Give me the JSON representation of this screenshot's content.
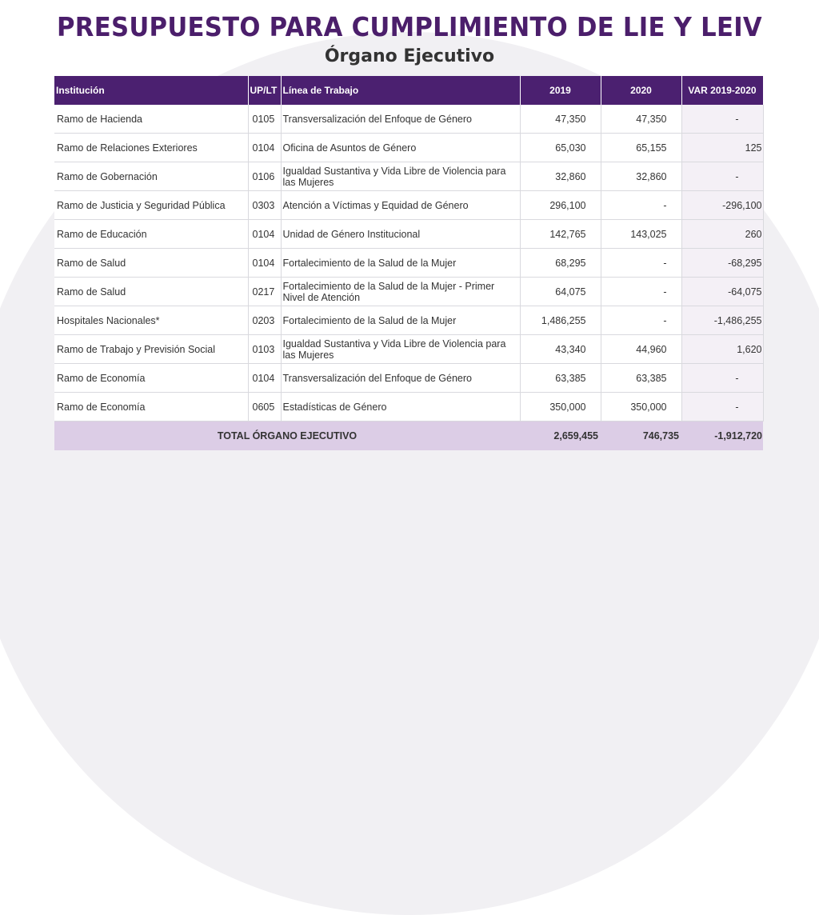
{
  "title": "PRESUPUESTO PARA CUMPLIMIENTO DE LIE Y LEIV",
  "subtitle": "Órgano Ejecutivo",
  "table": {
    "headers": {
      "institucion": "Institución",
      "uplt": "UP/LT",
      "linea": "Línea de Trabajo",
      "y2019": "2019",
      "y2020": "2020",
      "var": "VAR 2019-2020"
    },
    "rows": [
      {
        "institucion": "Ramo de Hacienda",
        "uplt": "0105",
        "linea": "Transversalización del Enfoque de Género",
        "y2019": "47,350",
        "y2020": "47,350",
        "var": "-"
      },
      {
        "institucion": "Ramo de Relaciones Exteriores",
        "uplt": "0104",
        "linea": "Oficina de Asuntos de Género",
        "y2019": "65,030",
        "y2020": "65,155",
        "var": "125"
      },
      {
        "institucion": "Ramo de Gobernación",
        "uplt": "0106",
        "linea": "Igualdad Sustantiva y Vida Libre de Violencia para las Mujeres",
        "y2019": "32,860",
        "y2020": "32,860",
        "var": "-"
      },
      {
        "institucion": "Ramo de Justicia y Seguridad Pública",
        "uplt": "0303",
        "linea": "Atención a Víctimas y Equidad de Género",
        "y2019": "296,100",
        "y2020": "-",
        "var": "-296,100"
      },
      {
        "institucion": "Ramo de Educación",
        "uplt": "0104",
        "linea": "Unidad de Género Institucional",
        "y2019": "142,765",
        "y2020": "143,025",
        "var": "260"
      },
      {
        "institucion": "Ramo de Salud",
        "uplt": "0104",
        "linea": "Fortalecimiento de la Salud de la Mujer",
        "y2019": "68,295",
        "y2020": "-",
        "var": "-68,295"
      },
      {
        "institucion": "Ramo de Salud",
        "uplt": "0217",
        "linea": "Fortalecimiento de la Salud de la Mujer - Primer Nivel de Atención",
        "y2019": "64,075",
        "y2020": "-",
        "var": "-64,075"
      },
      {
        "institucion": "Hospitales Nacionales*",
        "uplt": "0203",
        "linea": "Fortalecimiento de la Salud de la Mujer",
        "y2019": "1,486,255",
        "y2020": "-",
        "var": "-1,486,255"
      },
      {
        "institucion": "Ramo de Trabajo y Previsión Social",
        "uplt": "0103",
        "linea": "Igualdad Sustantiva y Vida Libre de Violencia para las Mujeres",
        "y2019": "43,340",
        "y2020": "44,960",
        "var": "1,620"
      },
      {
        "institucion": "Ramo de Economía",
        "uplt": "0104",
        "linea": "Transversalización del Enfoque de Género",
        "y2019": "63,385",
        "y2020": "63,385",
        "var": "-"
      },
      {
        "institucion": "Ramo de Economía",
        "uplt": "0605",
        "linea": "Estadísticas de Género",
        "y2019": "350,000",
        "y2020": "350,000",
        "var": "-"
      }
    ],
    "total": {
      "label": "TOTAL ÓRGANO EJECUTIVO",
      "y2019": "2,659,455",
      "y2020": "746,735",
      "var": "-1,912,720"
    }
  }
}
